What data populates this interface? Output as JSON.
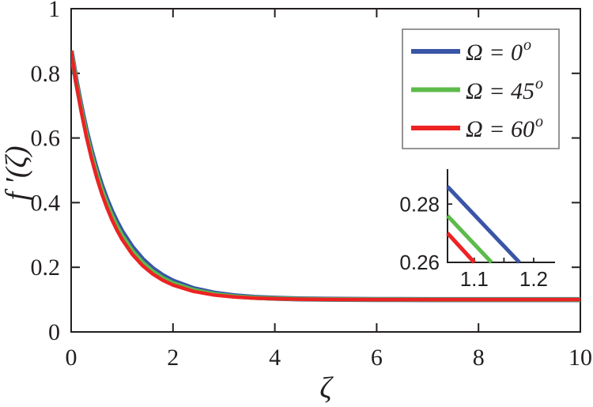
{
  "figure": {
    "background": "#ffffff",
    "axis_color": "#231f20",
    "legend_border_color": "#7b7b7b"
  },
  "chart_data": {
    "type": "line",
    "title": "",
    "xlabel": "ζ",
    "ylabel": "f ′(ζ)",
    "xlim": [
      0,
      10
    ],
    "ylim": [
      0,
      1
    ],
    "grid": false,
    "legend_position": "top-right-inside",
    "x_ticks": [
      0,
      2,
      4,
      6,
      8,
      10
    ],
    "x_tick_labels": [
      "0",
      "2",
      "4",
      "6",
      "8",
      "10"
    ],
    "y_ticks": [
      0,
      0.2,
      0.4,
      0.6,
      0.8,
      1
    ],
    "y_tick_labels": [
      "0",
      "0.2",
      "0.4",
      "0.6",
      "0.8",
      "1"
    ],
    "asymptote_value": 0.1,
    "series": [
      {
        "name": "Omega = 0 deg",
        "label": "Ω = 0",
        "label_sup": "o",
        "color": "#3a55a6",
        "x": [
          0,
          0.1,
          0.2,
          0.3,
          0.4,
          0.5,
          0.6,
          0.7,
          0.8,
          0.9,
          1,
          1.2,
          1.4,
          1.6,
          1.8,
          2,
          2.4,
          2.8,
          3.2,
          3.6,
          4,
          4.5,
          5,
          6,
          7,
          8,
          9,
          10
        ],
        "y": [
          0.87,
          0.7761,
          0.6937,
          0.6213,
          0.5578,
          0.502,
          0.453,
          0.4099,
          0.3722,
          0.339,
          0.3098,
          0.2618,
          0.2248,
          0.1962,
          0.1742,
          0.1572,
          0.134,
          0.1202,
          0.112,
          0.1072,
          0.1042,
          0.1022,
          0.1012,
          0.1003,
          0.1001,
          0.1,
          0.1,
          0.1
        ]
      },
      {
        "name": "Omega = 45 deg",
        "label": "Ω = 45",
        "label_sup": "o",
        "color": "#5cbb4a",
        "x": [
          0,
          0.1,
          0.2,
          0.3,
          0.4,
          0.5,
          0.6,
          0.7,
          0.8,
          0.9,
          1,
          1.2,
          1.4,
          1.6,
          1.8,
          2,
          2.4,
          2.8,
          3.2,
          3.6,
          4,
          4.5,
          5,
          6,
          7,
          8,
          9,
          10
        ],
        "y": [
          0.87,
          0.7721,
          0.6865,
          0.612,
          0.5469,
          0.4901,
          0.4405,
          0.3972,
          0.3594,
          0.3265,
          0.2977,
          0.2506,
          0.2147,
          0.1874,
          0.1666,
          0.1507,
          0.1295,
          0.1171,
          0.1099,
          0.1058,
          0.1033,
          0.1017,
          0.1009,
          0.1002,
          0.1001,
          0.1,
          0.1,
          0.1
        ]
      },
      {
        "name": "Omega = 60 deg",
        "label": "Ω = 60",
        "label_sup": "o",
        "color": "#ed2224",
        "x": [
          0,
          0.1,
          0.2,
          0.3,
          0.4,
          0.5,
          0.6,
          0.7,
          0.8,
          0.9,
          1,
          1.2,
          1.4,
          1.6,
          1.8,
          2,
          2.4,
          2.8,
          3.2,
          3.6,
          4,
          4.5,
          5,
          6,
          7,
          8,
          9,
          10
        ],
        "y": [
          0.87,
          0.768,
          0.6796,
          0.6029,
          0.5363,
          0.4785,
          0.4285,
          0.385,
          0.3472,
          0.3145,
          0.2861,
          0.2401,
          0.2055,
          0.1794,
          0.1597,
          0.145,
          0.1255,
          0.1144,
          0.1082,
          0.1046,
          0.1026,
          0.1013,
          0.1006,
          0.1001,
          0.1,
          0.1,
          0.1,
          0.1
        ]
      }
    ],
    "inset": {
      "xlim": [
        1.055,
        1.236
      ],
      "ylim": [
        0.26,
        0.292
      ],
      "x_ticks": [
        1.1,
        1.15,
        1.2
      ],
      "x_tick_labels": [
        "1.1",
        "",
        "1.2"
      ],
      "y_ticks": [
        0.26,
        0.28
      ],
      "y_tick_labels": [
        "0.26",
        "0.28"
      ],
      "series": [
        {
          "name": "Omega = 0 deg",
          "color": "#3a55a6",
          "x": [
            1.055,
            1.176
          ],
          "y": [
            0.286,
            0.26
          ]
        },
        {
          "name": "Omega = 45 deg",
          "color": "#5cbb4a",
          "x": [
            1.055,
            1.129
          ],
          "y": [
            0.276,
            0.26
          ]
        },
        {
          "name": "Omega = 60 deg",
          "color": "#ed2224",
          "x": [
            1.055,
            1.1
          ],
          "y": [
            0.27,
            0.26
          ]
        }
      ]
    }
  },
  "legend": {
    "items": [
      {
        "text": "Ω = 0",
        "sup": "o"
      },
      {
        "text": "Ω = 45",
        "sup": "o"
      },
      {
        "text": "Ω = 60",
        "sup": "o"
      }
    ]
  }
}
